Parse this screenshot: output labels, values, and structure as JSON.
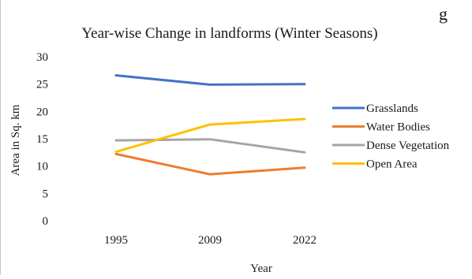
{
  "top_fragment": "g",
  "chart_data": {
    "type": "line",
    "title": "Year-wise Change in landforms (Winter Seasons)",
    "xlabel": "Year",
    "ylabel": "Area in Sq. km",
    "categories": [
      "1995",
      "2009",
      "2022"
    ],
    "ylim": [
      0,
      30
    ],
    "yticks": [
      0,
      5,
      10,
      15,
      20,
      25,
      30
    ],
    "grid": false,
    "legend_position": "right",
    "series": [
      {
        "name": "Grasslands",
        "color": "#4472C4",
        "values": [
          26.6,
          24.9,
          25.0
        ]
      },
      {
        "name": "Water Bodies",
        "color": "#ED7D31",
        "values": [
          12.2,
          8.5,
          9.7
        ]
      },
      {
        "name": "Dense Vegetation",
        "color": "#A5A5A5",
        "values": [
          14.7,
          14.9,
          12.5
        ]
      },
      {
        "name": "Open Area",
        "color": "#FFC000",
        "values": [
          12.6,
          17.6,
          18.6
        ]
      }
    ]
  }
}
